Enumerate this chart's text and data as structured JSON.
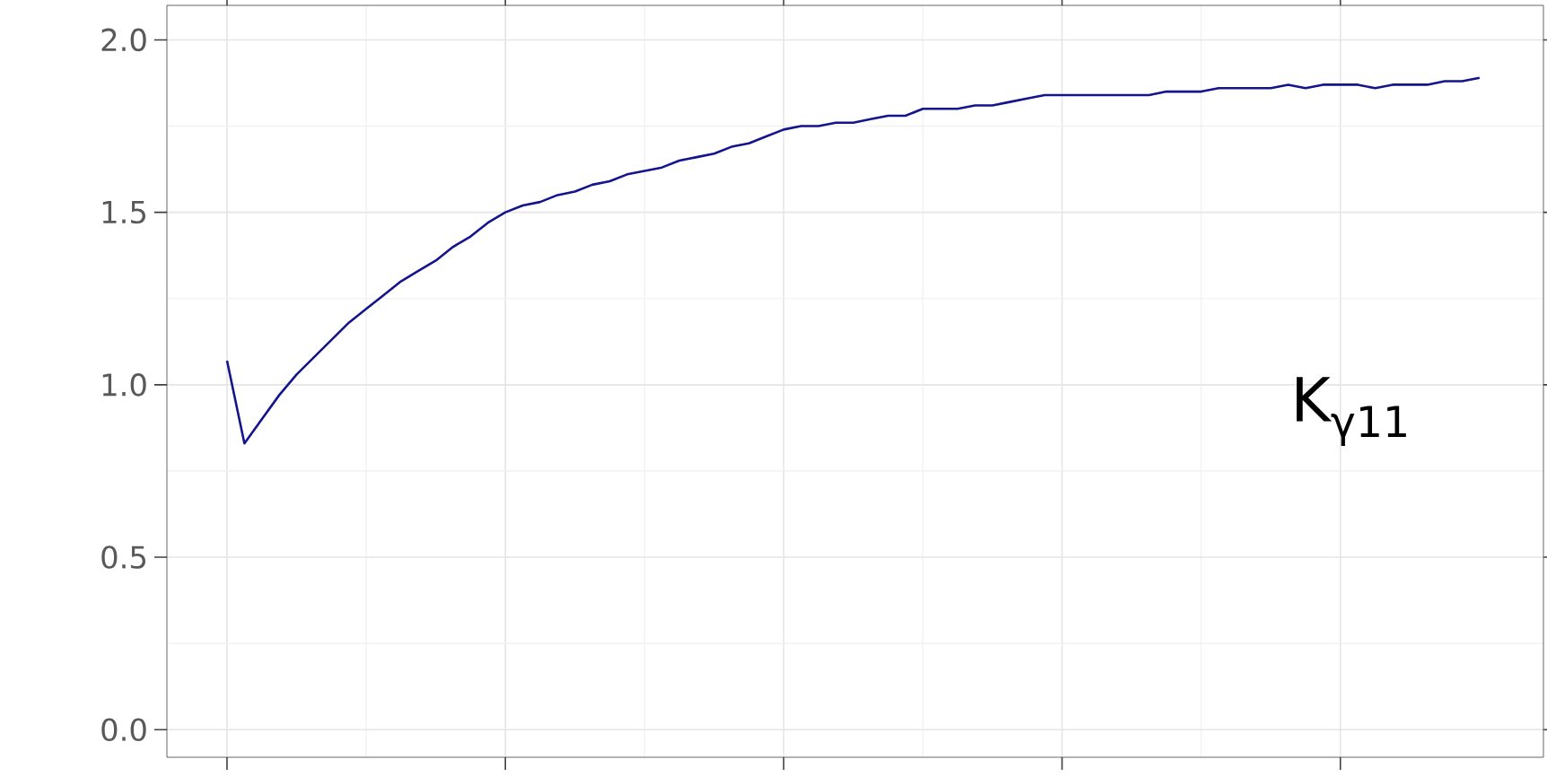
{
  "chart_data": {
    "type": "line",
    "categories": [
      null,
      null,
      null,
      null,
      null,
      null,
      null,
      null,
      null,
      null,
      null,
      null,
      null,
      null,
      null,
      null,
      null,
      null,
      null,
      null,
      null,
      null,
      null,
      null,
      null,
      null,
      null,
      null,
      null,
      null,
      null,
      null,
      null,
      null,
      null,
      null,
      null,
      null,
      null,
      null,
      null,
      null,
      null,
      null,
      null,
      null,
      null,
      null,
      null,
      null,
      null,
      null,
      null,
      null,
      null,
      null,
      null,
      null,
      null,
      null,
      null,
      null,
      null,
      null,
      null,
      null,
      null,
      null,
      null,
      null,
      null,
      null,
      null
    ],
    "series": [
      {
        "color": "#14148c",
        "values": [
          1.07,
          0.83,
          0.9,
          0.97,
          1.03,
          1.08,
          1.13,
          1.18,
          1.22,
          1.26,
          1.3,
          1.33,
          1.36,
          1.4,
          1.43,
          1.47,
          1.5,
          1.52,
          1.53,
          1.55,
          1.56,
          1.58,
          1.59,
          1.61,
          1.62,
          1.63,
          1.65,
          1.66,
          1.67,
          1.69,
          1.7,
          1.72,
          1.74,
          1.75,
          1.75,
          1.76,
          1.76,
          1.77,
          1.78,
          1.78,
          1.8,
          1.8,
          1.8,
          1.81,
          1.81,
          1.82,
          1.83,
          1.84,
          1.84,
          1.84,
          1.84,
          1.84,
          1.84,
          1.84,
          1.85,
          1.85,
          1.85,
          1.86,
          1.86,
          1.86,
          1.86,
          1.87,
          1.86,
          1.87,
          1.87,
          1.87,
          1.86,
          1.87,
          1.87,
          1.87,
          1.88,
          1.88,
          1.89
        ]
      }
    ],
    "ylim": [
      -0.08,
      2.1
    ],
    "yticks": [
      {
        "value": 0,
        "label": "0.0"
      },
      {
        "value": 0.5,
        "label": "0.5"
      },
      {
        "value": 1,
        "label": "1.0"
      },
      {
        "value": 1.5,
        "label": "1.5"
      },
      {
        "value": 2,
        "label": "2.0"
      }
    ],
    "grid": true,
    "annotations": [
      "K$_{γ11}$"
    ]
  }
}
